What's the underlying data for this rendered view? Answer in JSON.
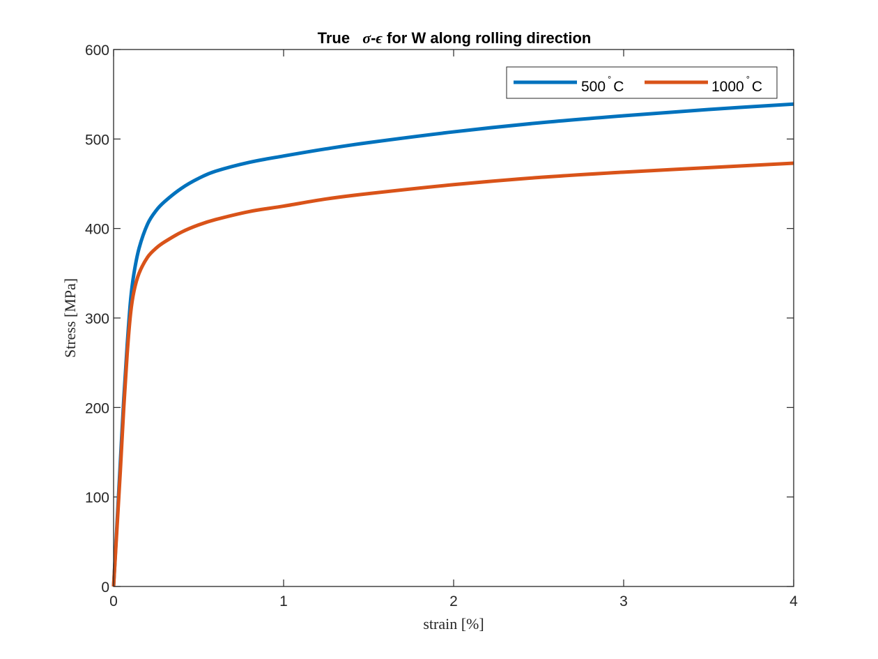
{
  "chart_data": {
    "type": "line",
    "title": {
      "prefix": "True",
      "sigma": "σ",
      "dash": "-",
      "epsilon": "ϵ",
      "suffix": "for W along rolling direction"
    },
    "xlabel": "strain [%]",
    "ylabel": "Stress [MPa]",
    "xlim": [
      0,
      4
    ],
    "ylim": [
      0,
      600
    ],
    "xticks": [
      0,
      1,
      2,
      3,
      4
    ],
    "yticks": [
      0,
      100,
      200,
      300,
      400,
      500,
      600
    ],
    "legend_location": "top-right",
    "series": [
      {
        "name": "500° C",
        "label_main": "500",
        "label_deg": "°",
        "label_unit": "C",
        "color": "#0072BD",
        "x": [
          0,
          0.02,
          0.04,
          0.06,
          0.08,
          0.1,
          0.12,
          0.15,
          0.2,
          0.25,
          0.3,
          0.4,
          0.5,
          0.6,
          0.8,
          1.0,
          1.25,
          1.5,
          2.0,
          2.5,
          3.0,
          3.5,
          4.0
        ],
        "y": [
          0,
          70,
          140,
          210,
          270,
          320,
          350,
          378,
          405,
          420,
          430,
          445,
          456,
          464,
          474,
          481,
          489,
          496,
          508,
          518,
          526,
          533,
          539
        ]
      },
      {
        "name": "1000° C",
        "label_main": "1000",
        "label_deg": "°",
        "label_unit": "C",
        "color": "#D95319",
        "x": [
          0,
          0.02,
          0.04,
          0.06,
          0.08,
          0.1,
          0.12,
          0.15,
          0.2,
          0.25,
          0.3,
          0.4,
          0.5,
          0.6,
          0.8,
          1.0,
          1.25,
          1.5,
          2.0,
          2.5,
          3.0,
          3.5,
          4.0
        ],
        "y": [
          0,
          65,
          130,
          200,
          260,
          305,
          330,
          350,
          368,
          378,
          385,
          396,
          404,
          410,
          419,
          425,
          433,
          439,
          449,
          457,
          463,
          468,
          473
        ]
      }
    ]
  }
}
